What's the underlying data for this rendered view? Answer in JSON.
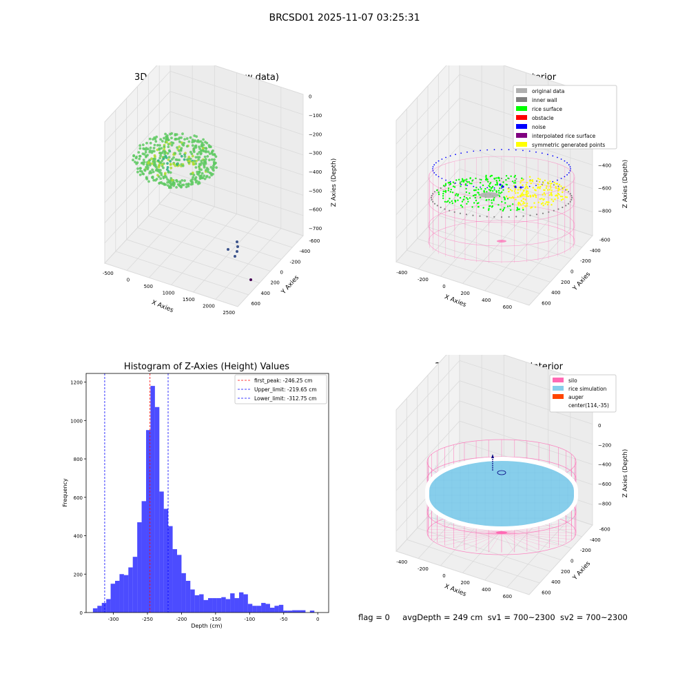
{
  "figure": {
    "suptitle": "BRCSD01 2025-11-07 03:25:31",
    "footer": {
      "flag": "flag = 0",
      "avg_depth": "avgDepth = 249 cm",
      "sv1": "sv1 = 700~2300",
      "sv2": "sv2 = 700~2300"
    },
    "colors": {
      "histogram_bar": "#0000ff",
      "first_peak_line": "#ff0000",
      "limit_lines": "#0000ff",
      "silo_wireframe": "#ff69b4",
      "rice_simulation": "#87ceeb",
      "auger": "#ff4500",
      "rice_surface": "#00ff00",
      "noise": "#0000ff",
      "inner_wall": "#808080",
      "original_data": "#b0b0b0",
      "symmetric_points": "#ffff00",
      "interpolated_rice_surface": "#800080"
    }
  },
  "chart_data": [
    {
      "type": "scatter",
      "projection": "3d",
      "title": "3D Plot of Silo Interior(row data)",
      "xlabel": "X Axies",
      "ylabel": "Y Axies",
      "zlabel": "Z Axies (Depth)",
      "x_ticks": [
        "-500",
        "0",
        "500",
        "1000",
        "1500",
        "2000",
        "2500"
      ],
      "y_ticks": [
        "-600",
        "-400",
        "-200",
        "0",
        "200",
        "400",
        "600"
      ],
      "z_ticks": [
        "0",
        "−100",
        "−200",
        "−300",
        "−400",
        "−500",
        "−600",
        "−700"
      ],
      "colormap": "viridis",
      "grid": true
    },
    {
      "type": "scatter",
      "projection": "3d",
      "title": "3D classify of Silo Interior",
      "xlabel": "X Axies",
      "ylabel": "Y Axies",
      "zlabel": "Z Axies (Depth)",
      "x_ticks": [
        "-400",
        "-200",
        "0",
        "200",
        "400",
        "600"
      ],
      "y_ticks": [
        "-600",
        "-400",
        "-200",
        "0",
        "200",
        "400",
        "600"
      ],
      "z_ticks": [
        "200",
        "0",
        "−200",
        "−400",
        "−600",
        "−800"
      ],
      "legend_position": "top-right",
      "legend": [
        {
          "label": "original data",
          "color": "#b0b0b0"
        },
        {
          "label": "inner wall",
          "color": "#808080"
        },
        {
          "label": "rice surface",
          "color": "#00ff00"
        },
        {
          "label": "obstacle",
          "color": "#ff0000"
        },
        {
          "label": "noise",
          "color": "#0000ff"
        },
        {
          "label": "interpolated rice surface",
          "color": "#800080"
        },
        {
          "label": "symmetric generated points",
          "color": "#ffff00"
        }
      ],
      "grid": true
    },
    {
      "type": "bar",
      "title": "Histogram of Z-Axies (Height) Values",
      "xlabel": "Depth (cm)",
      "ylabel": "Frequency",
      "xlim": [
        -340,
        16
      ],
      "ylim": [
        0,
        1245
      ],
      "x_ticks": [
        -300,
        -250,
        -200,
        -150,
        -100,
        -50,
        0
      ],
      "y_ticks": [
        0,
        200,
        400,
        600,
        800,
        1000,
        1200
      ],
      "bin_start": -330,
      "bin_width": 6.5,
      "values": [
        22,
        35,
        50,
        70,
        150,
        165,
        200,
        195,
        235,
        290,
        470,
        580,
        950,
        1180,
        1070,
        630,
        540,
        450,
        330,
        300,
        205,
        165,
        120,
        90,
        95,
        65,
        75,
        75,
        75,
        80,
        70,
        100,
        75,
        105,
        95,
        45,
        35,
        35,
        50,
        45,
        25,
        35,
        40,
        10,
        10,
        12,
        12,
        12,
        0,
        10
      ],
      "vlines": [
        {
          "label": "first_peak: -246.25 cm",
          "x": -246.25,
          "color": "#ff0000"
        },
        {
          "label": "Upper_limit: -219.65 cm",
          "x": -219.65,
          "color": "#0000ff"
        },
        {
          "label": "Lower_limit: -312.75 cm",
          "x": -312.75,
          "color": "#0000ff"
        }
      ],
      "legend_position": "top-right",
      "grid": false
    },
    {
      "type": "scatter",
      "projection": "3d",
      "title": "3D simulation of Silo Interior",
      "xlabel": "X Axies",
      "ylabel": "Y Axies",
      "zlabel": "Z Axies (Depth)",
      "x_ticks": [
        "-400",
        "-200",
        "0",
        "200",
        "400",
        "600"
      ],
      "y_ticks": [
        "-600",
        "-400",
        "-200",
        "0",
        "200",
        "400",
        "600"
      ],
      "z_ticks": [
        "400",
        "200",
        "0",
        "−200",
        "−400",
        "−600",
        "−800"
      ],
      "legend_position": "top-right",
      "legend": [
        {
          "label": "silo",
          "color": "#ff69b4"
        },
        {
          "label": "rice simulation",
          "color": "#87ceeb"
        },
        {
          "label": "auger",
          "color": "#ff4500"
        },
        {
          "label": "center(114,-35)",
          "color": ""
        }
      ],
      "grid": true
    }
  ]
}
